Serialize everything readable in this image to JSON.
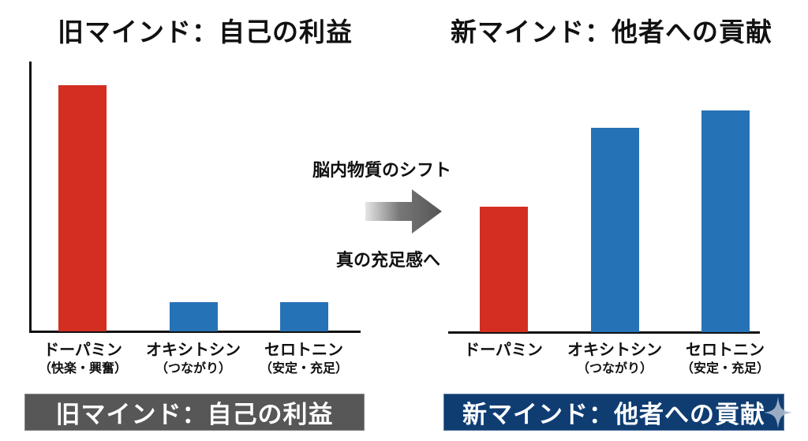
{
  "left_panel": {
    "title": "旧マインド：自己の利益",
    "banner": "旧マインド：自己の利益",
    "banner_color": "#575757",
    "categories": [
      {
        "name": "ドーパミン",
        "sub": "（快楽・興奮）"
      },
      {
        "name": "オキシトシン",
        "sub": "（つながり）"
      },
      {
        "name": "セロトニン",
        "sub": "（安定・充足）"
      }
    ]
  },
  "right_panel": {
    "title": "新マインド：他者への貢献",
    "banner": "新マインド：他者への貢献",
    "banner_color": "#0f3d72",
    "categories": [
      {
        "name": "ドーパミン",
        "sub": ""
      },
      {
        "name": "オキシトシン",
        "sub": "（つながり）"
      },
      {
        "name": "セロトニン",
        "sub": "（安定・充足）"
      }
    ]
  },
  "transition": {
    "top_text": "脳内物質のシフト",
    "bottom_text": "真の充足感へ",
    "icon": "arrow-right-icon"
  },
  "colors": {
    "dopamine": "#d42e23",
    "oxytocin": "#2672b6",
    "serotonin": "#2672b6"
  },
  "chart_data": [
    {
      "type": "bar",
      "title": "旧マインド：自己の利益",
      "categories": [
        "ドーパミン（快楽・興奮）",
        "オキシトシン（つながり）",
        "セロトニン（安定・充足）"
      ],
      "values": [
        100,
        12,
        12
      ],
      "bar_colors": [
        "#d42e23",
        "#2672b6",
        "#2672b6"
      ],
      "xlabel": "",
      "ylabel": "",
      "ylim": [
        0,
        110
      ],
      "grid": false,
      "legend": "none",
      "note": "Relative heights estimated from pixels (no numeric axis shown)"
    },
    {
      "type": "bar",
      "title": "新マインド：他者への貢献",
      "categories": [
        "ドーパミン",
        "オキシトシン（つながり）",
        "セロトニン（安定・充足）"
      ],
      "values": [
        51,
        83,
        90
      ],
      "bar_colors": [
        "#d42e23",
        "#2672b6",
        "#2672b6"
      ],
      "xlabel": "",
      "ylabel": "",
      "ylim": [
        0,
        110
      ],
      "grid": false,
      "legend": "none",
      "note": "Relative heights estimated from pixels (no numeric axis shown)"
    }
  ]
}
